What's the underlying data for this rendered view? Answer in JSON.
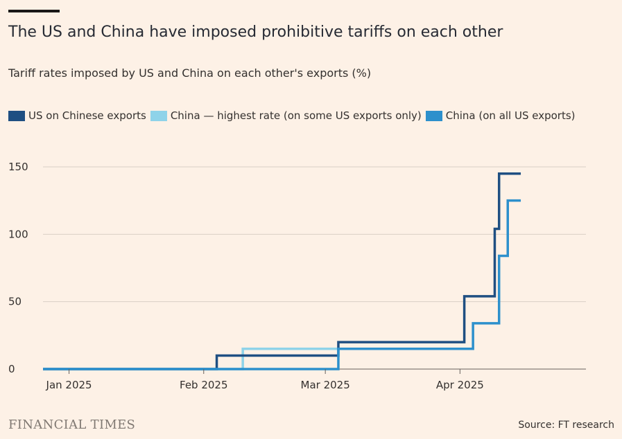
{
  "header": {
    "title": "The US and China have imposed prohibitive tariffs on each other",
    "subtitle": "Tariff rates imposed by US and China on each other's exports (%)"
  },
  "footer": {
    "brand": "FINANCIAL TIMES",
    "source": "Source: FT research"
  },
  "chart_data": {
    "type": "line",
    "step": true,
    "title": "The US and China have imposed prohibitive tariffs on each other",
    "subtitle": "Tariff rates imposed by US and China on each other's exports (%)",
    "ylim": [
      0,
      150
    ],
    "y_ticks": [
      0,
      50,
      100,
      150
    ],
    "y_tick_labels": [
      "0",
      "50",
      "100",
      "150"
    ],
    "xlim": [
      "2024-12-26",
      "2025-04-30"
    ],
    "x_ticks": [
      "2025-01-01",
      "2025-02-01",
      "2025-03-01",
      "2025-04-01"
    ],
    "x_tick_labels": [
      "Jan 2025",
      "Feb 2025",
      "Mar 2025",
      "Apr 2025"
    ],
    "grid": true,
    "legend_position": "top-left",
    "series": [
      {
        "name": "US on Chinese exports",
        "color": "#1f4f82",
        "points": [
          [
            "2024-12-26",
            0
          ],
          [
            "2025-02-04",
            10
          ],
          [
            "2025-03-04",
            20
          ],
          [
            "2025-04-02",
            54
          ],
          [
            "2025-04-09",
            104
          ],
          [
            "2025-04-10",
            145
          ],
          [
            "2025-04-15",
            145
          ]
        ]
      },
      {
        "name": "China — highest rate (on some US exports only)",
        "color": "#8fd3e9",
        "points": [
          [
            "2024-12-26",
            0
          ],
          [
            "2025-02-10",
            15
          ],
          [
            "2025-03-04",
            15
          ]
        ]
      },
      {
        "name": "China (on all US exports)",
        "color": "#2d90cc",
        "points": [
          [
            "2024-12-26",
            0
          ],
          [
            "2025-03-04",
            15
          ],
          [
            "2025-04-04",
            34
          ],
          [
            "2025-04-10",
            84
          ],
          [
            "2025-04-12",
            125
          ],
          [
            "2025-04-15",
            125
          ]
        ]
      }
    ]
  }
}
